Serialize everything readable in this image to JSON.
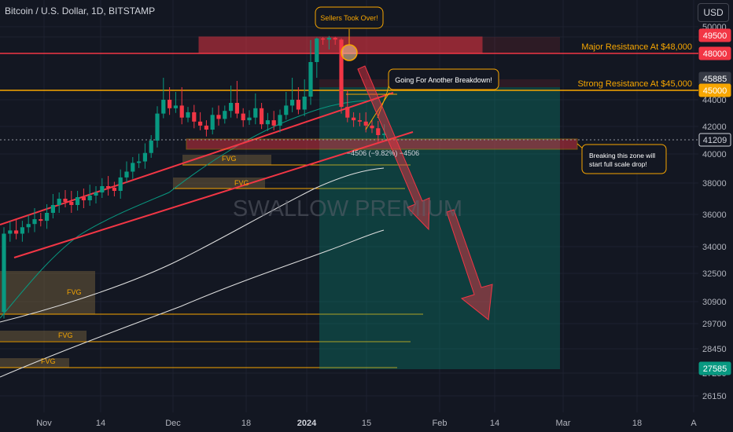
{
  "header": {
    "title": "Bitcoin / U.S. Dollar, 1D, BITSTAMP",
    "currency": "USD"
  },
  "watermark": "SWALLOW PREMIUM",
  "chart_data": {
    "type": "candlestick",
    "title": "Bitcoin / U.S. Dollar, 1D, BITSTAMP",
    "y_axis_ticks": [
      50000,
      46000,
      44000,
      42000,
      40000,
      38000,
      36000,
      34000,
      32500,
      30900,
      29700,
      28450,
      27250,
      26150
    ],
    "x_axis_ticks": [
      "Nov",
      "14",
      "Dec",
      "18",
      "2024",
      "15",
      "Feb",
      "14",
      "Mar",
      "18",
      "A"
    ],
    "price_tags": [
      {
        "value": "49500",
        "color": "#f23645"
      },
      {
        "value": "48000",
        "color": "#f23645"
      },
      {
        "value": "45885",
        "color": "#363a45"
      },
      {
        "value": "45000",
        "color": "#f7a600"
      },
      {
        "value": "41209",
        "color": "#131722"
      },
      {
        "value": "27585",
        "color": "#089981"
      }
    ],
    "annotations": {
      "sellers": "Sellers Took Over!",
      "breakdown": "Going For Another Breakdown!",
      "major_resistance": "Major Resistance At $48,000",
      "strong_resistance": "Strong Resistance At $45,000",
      "zone_note_1": "Breaking this zone will",
      "zone_note_2": "start full scale drop!",
      "measure": "−4506 (−9.82%) −4506",
      "fvg_label": "FVG"
    },
    "close_series": [
      35000,
      35200,
      35000,
      35400,
      35600,
      35900,
      35800,
      36300,
      36800,
      37200,
      37000,
      36800,
      37300,
      37100,
      37400,
      37600,
      38000,
      37900,
      37700,
      38600,
      39000,
      39600,
      39700,
      40300,
      41200,
      43200,
      44100,
      43600,
      43800,
      42900,
      43300,
      42600,
      42300,
      42000,
      43100,
      42800,
      43400,
      44000,
      43200,
      42700,
      42900,
      43600,
      42400,
      42700,
      42300,
      43100,
      43800,
      44100,
      43500,
      44200,
      45300,
      46600,
      46200,
      46900,
      46200,
      43700,
      42900,
      42700,
      42600,
      42300,
      42100,
      41600,
      41700
    ],
    "colors": {
      "up": "#089981",
      "down": "#f23645",
      "resistance": "#f23645",
      "support": "#f7a600",
      "channel": "#f23645",
      "background": "#131722"
    }
  }
}
